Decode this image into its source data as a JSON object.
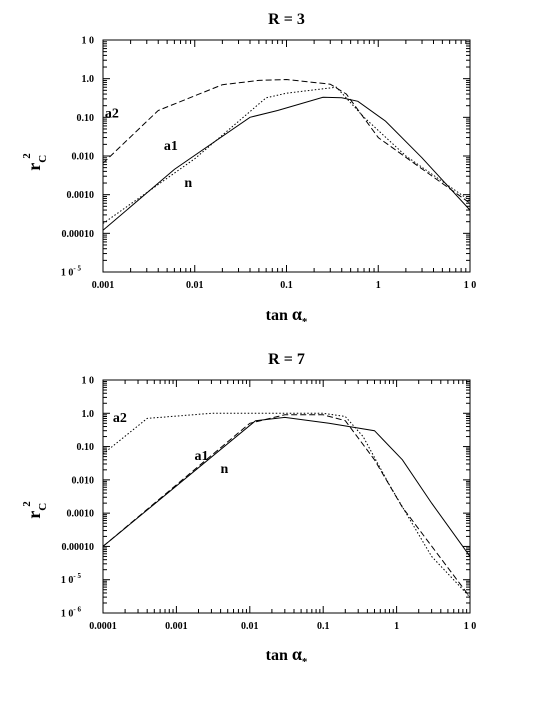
{
  "chart_data": [
    {
      "type": "line",
      "title": "R = 3",
      "xlabel": {
        "main": "tan",
        "greek": "α",
        "sub": "*"
      },
      "ylabel": {
        "main": "r",
        "sub": "C",
        "sup": "2"
      },
      "xscale": "log",
      "yscale": "log",
      "xlim": [
        0.001,
        10
      ],
      "ylim": [
        1e-05,
        10
      ],
      "xticks": [
        {
          "v": 0.001,
          "label": "0.001"
        },
        {
          "v": 0.01,
          "label": "0.01"
        },
        {
          "v": 0.1,
          "label": "0.1"
        },
        {
          "v": 1,
          "label": "1"
        },
        {
          "v": 10,
          "label": "1 0"
        }
      ],
      "yticks": [
        {
          "v": 1e-05,
          "label": "1 0",
          "sup": "- 5"
        },
        {
          "v": 0.0001,
          "label": "0.00010"
        },
        {
          "v": 0.001,
          "label": "0.0010"
        },
        {
          "v": 0.01,
          "label": "0.010"
        },
        {
          "v": 0.1,
          "label": "0.10"
        },
        {
          "v": 1,
          "label": "1.0"
        },
        {
          "v": 10,
          "label": "1 0"
        }
      ],
      "series": [
        {
          "name": "n",
          "style": "solid",
          "label_at": {
            "x": 0.0085,
            "y": 0.0016
          },
          "points": [
            [
              0.001,
              0.00012
            ],
            [
              0.006,
              0.0045
            ],
            [
              0.04,
              0.1
            ],
            [
              0.08,
              0.15
            ],
            [
              0.25,
              0.33
            ],
            [
              0.4,
              0.32
            ],
            [
              0.6,
              0.26
            ],
            [
              1.2,
              0.08
            ],
            [
              3,
              0.009
            ],
            [
              10,
              0.0004
            ]
          ]
        },
        {
          "name": "a1",
          "style": "dotted",
          "label_at": {
            "x": 0.0055,
            "y": 0.0145
          },
          "points": [
            [
              0.001,
              0.00018
            ],
            [
              0.01,
              0.0085
            ],
            [
              0.06,
              0.32
            ],
            [
              0.1,
              0.42
            ],
            [
              0.35,
              0.6
            ],
            [
              0.7,
              0.1
            ],
            [
              2,
              0.01
            ],
            [
              10,
              0.0007
            ]
          ]
        },
        {
          "name": "a2",
          "style": "dashed",
          "label_at": {
            "x": 0.00125,
            "y": 0.1
          },
          "points": [
            [
              0.001,
              0.0065
            ],
            [
              0.004,
              0.15
            ],
            [
              0.02,
              0.7
            ],
            [
              0.05,
              0.9
            ],
            [
              0.1,
              0.95
            ],
            [
              0.3,
              0.72
            ],
            [
              0.45,
              0.4
            ],
            [
              1,
              0.03
            ],
            [
              10,
              0.0006
            ]
          ]
        }
      ]
    },
    {
      "type": "line",
      "title": "R = 7",
      "xlabel": {
        "main": "tan",
        "greek": "α",
        "sub": "*"
      },
      "ylabel": {
        "main": "r",
        "sub": "C",
        "sup": "2"
      },
      "xscale": "log",
      "yscale": "log",
      "xlim": [
        0.0001,
        10
      ],
      "ylim": [
        1e-06,
        10
      ],
      "xticks": [
        {
          "v": 0.0001,
          "label": "0.0001"
        },
        {
          "v": 0.001,
          "label": "0.001"
        },
        {
          "v": 0.01,
          "label": "0.01"
        },
        {
          "v": 0.1,
          "label": "0.1"
        },
        {
          "v": 1,
          "label": "1"
        },
        {
          "v": 10,
          "label": "1 0"
        }
      ],
      "yticks": [
        {
          "v": 1e-06,
          "label": "1 0",
          "sup": "- 6"
        },
        {
          "v": 1e-05,
          "label": "1 0",
          "sup": "- 5"
        },
        {
          "v": 0.0001,
          "label": "0.00010"
        },
        {
          "v": 0.001,
          "label": "0.0010"
        },
        {
          "v": 0.01,
          "label": "0.010"
        },
        {
          "v": 0.1,
          "label": "0.10"
        },
        {
          "v": 1,
          "label": "1.0"
        },
        {
          "v": 10,
          "label": "1 0"
        }
      ],
      "series": [
        {
          "name": "n",
          "style": "solid",
          "label_at": {
            "x": 0.0045,
            "y": 0.016
          },
          "points": [
            [
              0.0001,
              0.0001
            ],
            [
              0.012,
              0.6
            ],
            [
              0.03,
              0.75
            ],
            [
              0.12,
              0.5
            ],
            [
              0.5,
              0.3
            ],
            [
              1.2,
              0.04
            ],
            [
              3,
              0.002
            ],
            [
              10,
              5e-05
            ]
          ]
        },
        {
          "name": "a1",
          "style": "dashed",
          "label_at": {
            "x": 0.0022,
            "y": 0.04
          },
          "points": [
            [
              0.0001,
              0.0001
            ],
            [
              0.0015,
              0.015
            ],
            [
              0.01,
              0.5
            ],
            [
              0.03,
              0.9
            ],
            [
              0.1,
              0.9
            ],
            [
              0.2,
              0.6
            ],
            [
              0.5,
              0.04
            ],
            [
              1.2,
              0.0015
            ],
            [
              10,
              3e-06
            ]
          ]
        },
        {
          "name": "a2",
          "style": "dotted",
          "label_at": {
            "x": 0.00017,
            "y": 0.55
          },
          "points": [
            [
              0.0001,
              0.06
            ],
            [
              0.0004,
              0.7
            ],
            [
              0.003,
              1.0
            ],
            [
              0.1,
              1.0
            ],
            [
              0.2,
              0.8
            ],
            [
              0.35,
              0.2
            ],
            [
              0.8,
              0.007
            ],
            [
              3,
              5e-05
            ],
            [
              10,
              3e-06
            ]
          ]
        }
      ]
    }
  ]
}
